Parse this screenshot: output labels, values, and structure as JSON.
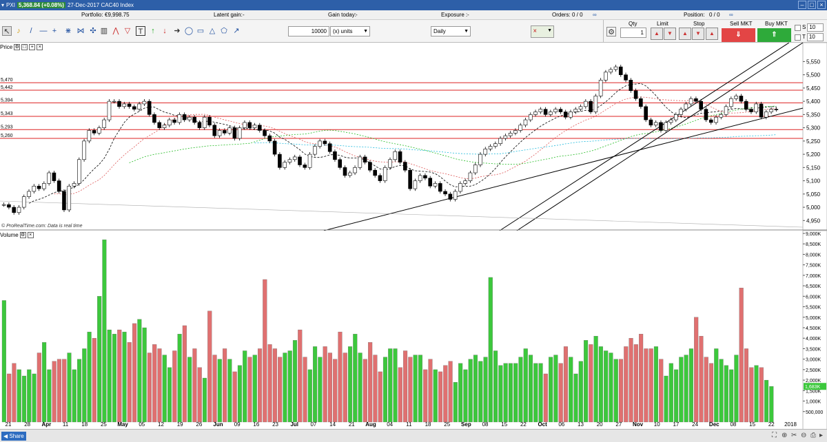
{
  "titlebar": {
    "symbol": "PXI",
    "last_price": "5,368.84 (+0.08%)",
    "date_instrument": "27-Dec-2017 CAC40 Index"
  },
  "info": {
    "portfolio_label": "Portfolio:",
    "portfolio_value": "€9,998.75",
    "latent_label": "Latent gain:",
    "latent_value": "-",
    "gain_label": "Gain today:",
    "gain_value": "-",
    "exposure_label": "Exposure :",
    "exposure_value": "-",
    "orders_label": "Orders:",
    "orders_value": "0 / 0",
    "position_label": "Position:",
    "position_value": "0 / 0"
  },
  "toolbar": {
    "quantity": "10000",
    "units": "(x) units",
    "interval": "Daily"
  },
  "order": {
    "qty_label": "Qty",
    "qty_value": "1",
    "limit_label": "Limit",
    "stop_label": "Stop",
    "sell_label": "Sell MKT",
    "buy_label": "Buy MKT",
    "s_label": "S",
    "t_label": "T",
    "s_value": "10",
    "t_value": "10"
  },
  "price_panel": {
    "title": "Price",
    "watermark": "© ProRealTime.com: Data is real time"
  },
  "volume_panel": {
    "title": "Volume"
  },
  "taskbar": {
    "share_label": "Share"
  },
  "colors": {
    "up": "#3cc83c",
    "down": "#e07070",
    "hline": "#d22",
    "title": "#2d5fa8"
  },
  "chart_data": {
    "type": "candlestick",
    "hlines": [
      5470,
      5442,
      5394,
      5343,
      5293,
      5260
    ],
    "ylim": [
      4930,
      5590
    ],
    "yticks": [
      4950,
      5000,
      5050,
      5100,
      5150,
      5200,
      5250,
      5300,
      5350,
      5400,
      5450,
      5500,
      5550
    ],
    "ytick_labels": [
      "4,950",
      "5,000",
      "5,050",
      "5,100",
      "5,150",
      "5,200",
      "5,250",
      "5,300",
      "5,350",
      "5,400",
      "5,450",
      "5,500",
      "5,550"
    ],
    "hline_labels": [
      "5,470",
      "5,442",
      "5,394",
      "5,343",
      "5,293",
      "5,260"
    ],
    "xticks": [
      "21",
      "28",
      "Apr",
      "11",
      "18",
      "25",
      "May",
      "05",
      "12",
      "19",
      "26",
      "Jun",
      "09",
      "16",
      "23",
      "Jul",
      "07",
      "14",
      "21",
      "Aug",
      "04",
      "11",
      "18",
      "25",
      "Sep",
      "08",
      "15",
      "22",
      "Oct",
      "06",
      "13",
      "20",
      "27",
      "Nov",
      "10",
      "17",
      "24",
      "Dec",
      "08",
      "15",
      "22",
      "2018"
    ],
    "volume_ylim": [
      0,
      9000000
    ],
    "volume_ticks": [
      "500,000",
      "1,000K",
      "1,500K",
      "2,000K",
      "2,500K",
      "3,000K",
      "3,500K",
      "4,000K",
      "4,500K",
      "5,000K",
      "5,500K",
      "6,000K",
      "6,500K",
      "7,000K",
      "7,500K",
      "8,000K",
      "8,500K",
      "9,000K"
    ],
    "volume_last": "1,683K",
    "closes": [
      5010,
      5000,
      4980,
      5000,
      5040,
      5060,
      5080,
      5070,
      5090,
      5130,
      5100,
      5060,
      4990,
      5080,
      5090,
      5180,
      5250,
      5290,
      5280,
      5300,
      5330,
      5400,
      5400,
      5380,
      5390,
      5380,
      5370,
      5390,
      5400,
      5350,
      5320,
      5300,
      5310,
      5330,
      5320,
      5350,
      5330,
      5340,
      5320,
      5300,
      5340,
      5310,
      5270,
      5290,
      5280,
      5300,
      5260,
      5300,
      5320,
      5300,
      5310,
      5290,
      5270,
      5250,
      5200,
      5150,
      5170,
      5180,
      5190,
      5160,
      5150,
      5200,
      5230,
      5250,
      5240,
      5210,
      5180,
      5150,
      5120,
      5130,
      5150,
      5190,
      5170,
      5140,
      5120,
      5100,
      5150,
      5180,
      5210,
      5170,
      5140,
      5070,
      5100,
      5120,
      5110,
      5080,
      5090,
      5060,
      5050,
      5030,
      5060,
      5090,
      5100,
      5130,
      5160,
      5200,
      5220,
      5230,
      5240,
      5260,
      5270,
      5280,
      5290,
      5310,
      5330,
      5350,
      5360,
      5370,
      5350,
      5360,
      5370,
      5360,
      5340,
      5360,
      5370,
      5380,
      5400,
      5360,
      5420,
      5480,
      5510,
      5520,
      5530,
      5500,
      5480,
      5440,
      5410,
      5380,
      5330,
      5310,
      5320,
      5290,
      5320,
      5330,
      5350,
      5370,
      5390,
      5410,
      5400,
      5370,
      5330,
      5320,
      5340,
      5350,
      5380,
      5410,
      5420,
      5400,
      5370,
      5360,
      5390,
      5340,
      5360,
      5370,
      5369
    ],
    "volumes": [
      5.8,
      2.3,
      2.8,
      2.5,
      2.2,
      2.5,
      2.3,
      3.3,
      3.8,
      2.5,
      2.9,
      3.0,
      3.0,
      3.3,
      2.5,
      3.0,
      3.5,
      4.3,
      4.0,
      6.0,
      8.7,
      4.4,
      4.2,
      4.4,
      4.3,
      3.8,
      4.7,
      4.9,
      4.5,
      3.3,
      3.7,
      3.5,
      3.2,
      2.6,
      3.4,
      4.2,
      4.6,
      3.1,
      3.5,
      2.6,
      2.1,
      5.3,
      3.2,
      3.0,
      3.5,
      3.0,
      2.4,
      2.7,
      3.4,
      3.1,
      3.2,
      3.5,
      6.8,
      3.7,
      3.5,
      3.1,
      3.3,
      3.4,
      3.9,
      4.4,
      3.1,
      2.5,
      3.6,
      3.1,
      3.6,
      3.3,
      3.0,
      4.3,
      3.3,
      3.6,
      4.2,
      3.3,
      3.0,
      3.8,
      3.2,
      2.4,
      3.1,
      3.5,
      3.5,
      2.6,
      3.4,
      3.1,
      3.2,
      3.2,
      2.5,
      3.0,
      2.5,
      2.4,
      2.7,
      2.9,
      1.9,
      2.8,
      2.5,
      3.0,
      3.2,
      2.9,
      3.1,
      6.9,
      3.4,
      2.7,
      2.8,
      2.8,
      2.8,
      3.1,
      3.5,
      3.2,
      2.8,
      2.8,
      2.3,
      3.1,
      3.2,
      2.8,
      3.6,
      3.1,
      2.3,
      2.9,
      3.9,
      3.7,
      4.1,
      3.6,
      3.4,
      3.3,
      3.0,
      3.0,
      3.6,
      4.0,
      3.7,
      4.2,
      3.5,
      3.5,
      3.6,
      3.0,
      2.2,
      2.8,
      2.5,
      3.1,
      3.2,
      3.5,
      5.0,
      4.1,
      3.1,
      2.8,
      3.5,
      3.0,
      2.7,
      2.5,
      3.2,
      6.4,
      3.5,
      2.6,
      2.7,
      2.6,
      2.0,
      1.7
    ]
  }
}
